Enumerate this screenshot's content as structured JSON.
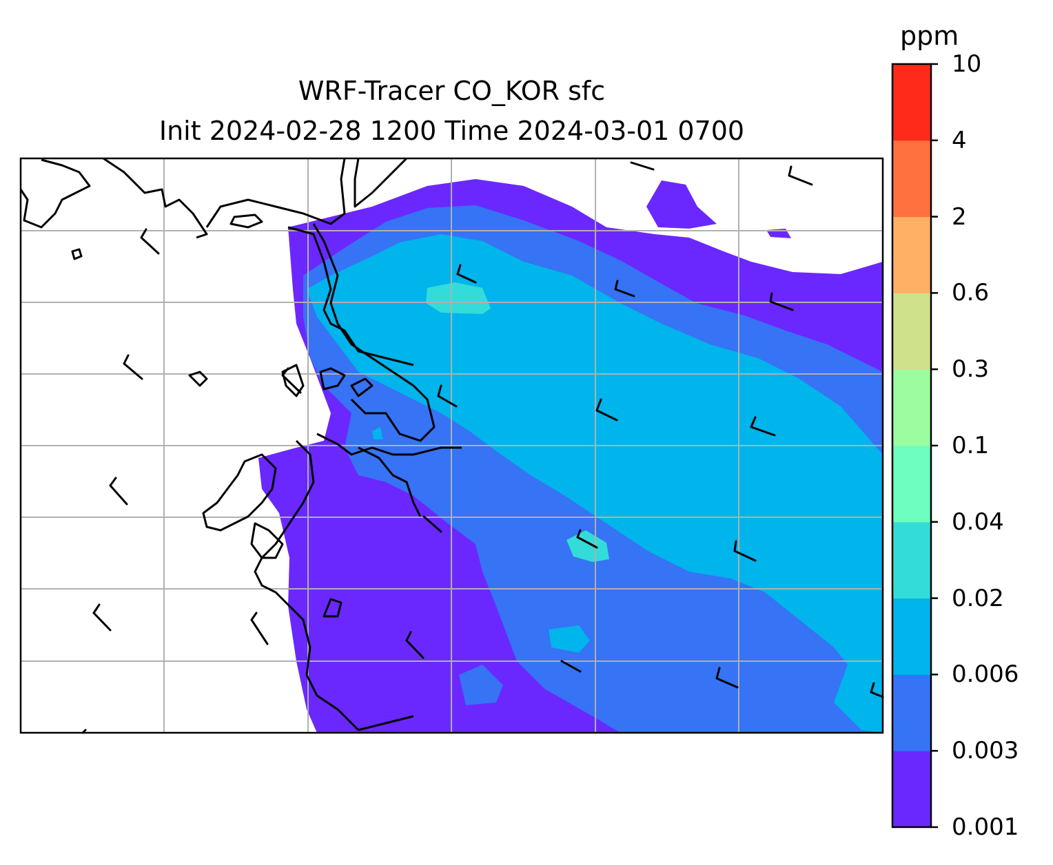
{
  "title": {
    "line1": "WRF-Tracer CO_KOR sfc",
    "line2": "Init 2024-02-28 1200 Time 2024-03-01 0700"
  },
  "colorbar": {
    "unit": "ppm",
    "levels": [
      "0.001",
      "0.003",
      "0.006",
      "0.02",
      "0.04",
      "0.1",
      "0.3",
      "0.6",
      "2",
      "4",
      "10"
    ],
    "colors": [
      "#6a28ff",
      "#3673f5",
      "#00b4ec",
      "#33dcd8",
      "#6cffc0",
      "#9cfca0",
      "#d0e18c",
      "#ffb064",
      "#ff713f",
      "#ff2a1a"
    ]
  },
  "map": {
    "concentration_field": [
      {
        "band": "0.001-0.003",
        "color": "#6a28ff"
      },
      {
        "band": "0.003-0.006",
        "color": "#3673f5"
      },
      {
        "band": "0.006-0.02",
        "color": "#00b4ec"
      },
      {
        "band": "0.02-0.04",
        "color": "#33dcd8"
      }
    ],
    "icons": [
      "coastline-lines",
      "gridlines",
      "wind-barb-icon"
    ]
  }
}
